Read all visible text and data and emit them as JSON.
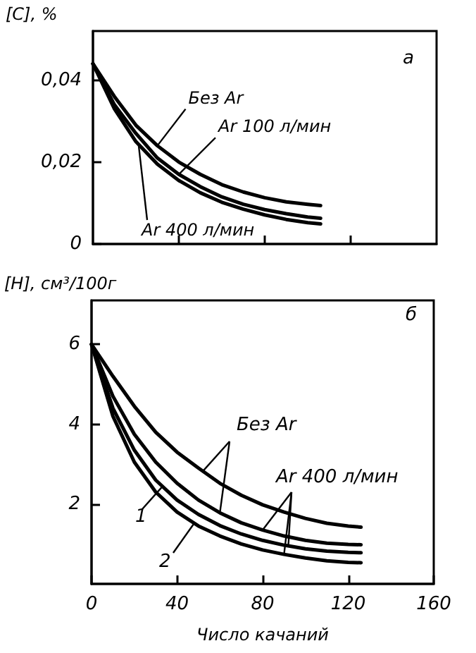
{
  "chart_data": [
    {
      "type": "line",
      "ylabel": "[C], %",
      "xlim": [
        0,
        160
      ],
      "xticks": [
        {
          "value": 40,
          "label": null
        },
        {
          "value": 80,
          "label": null
        },
        {
          "value": 120,
          "label": null
        }
      ],
      "ylim": [
        0,
        0.052
      ],
      "yticks": [
        0,
        {
          "value": 0.02,
          "label": "0,02"
        },
        {
          "value": 0.04,
          "label": "0,04"
        }
      ],
      "tick_labels": "y",
      "grid": false,
      "marker": "none",
      "line_style": "solid",
      "annotations": [
        "а"
      ],
      "x": [
        0,
        10,
        20,
        30,
        40,
        50,
        60,
        70,
        80,
        90,
        100,
        106
      ],
      "series": [
        {
          "name": "Без Ar",
          "color": "#000000",
          "values": [
            0.044,
            0.036,
            0.029,
            0.024,
            0.02,
            0.017,
            0.0145,
            0.0127,
            0.0113,
            0.0103,
            0.0097,
            0.0094
          ]
        },
        {
          "name": "Ar 100 л/мин",
          "color": "#000000",
          "values": [
            0.044,
            0.034,
            0.027,
            0.021,
            0.017,
            0.014,
            0.0115,
            0.0097,
            0.0084,
            0.0074,
            0.0066,
            0.0063
          ]
        },
        {
          "name": "Ar 400 л/мин",
          "color": "#000000",
          "values": [
            0.044,
            0.033,
            0.025,
            0.0195,
            0.0155,
            0.0125,
            0.0102,
            0.0085,
            0.0071,
            0.006,
            0.0052,
            0.0049
          ]
        }
      ]
    },
    {
      "type": "line",
      "ylabel": "[H], см³/100г",
      "xlabel": "Число качаний",
      "xlim": [
        0,
        160
      ],
      "xticks": [
        0,
        40,
        80,
        120,
        160
      ],
      "ylim": [
        0,
        7.1
      ],
      "yticks": [
        2,
        4,
        6
      ],
      "grid": false,
      "marker": "none",
      "line_style": "solid",
      "annotations": [
        "б",
        {
          "text": "Без Ar",
          "x": 52,
          "y": 2.82
        },
        {
          "text": "Ar 400 л/мин",
          "x": 80,
          "y": 1.35
        },
        {
          "text": "1",
          "x": 33,
          "y": 2.43
        },
        {
          "text": "2",
          "x": 48,
          "y": 1.52
        }
      ],
      "x": [
        0,
        10,
        20,
        30,
        40,
        50,
        60,
        70,
        80,
        90,
        100,
        110,
        120,
        126
      ],
      "series": [
        {
          "color": "#000000",
          "values": [
            6.0,
            5.2,
            4.45,
            3.8,
            3.3,
            2.9,
            2.52,
            2.22,
            1.98,
            1.8,
            1.64,
            1.52,
            1.45,
            1.42
          ]
        },
        {
          "color": "#000000",
          "values": [
            6.0,
            4.7,
            3.75,
            3.05,
            2.52,
            2.1,
            1.78,
            1.53,
            1.35,
            1.2,
            1.09,
            1.02,
            0.99,
            0.98
          ]
        },
        {
          "color": "#000000",
          "values": [
            6.0,
            4.4,
            3.35,
            2.6,
            2.1,
            1.74,
            1.46,
            1.25,
            1.09,
            0.97,
            0.88,
            0.82,
            0.79,
            0.78
          ]
        },
        {
          "color": "#000000",
          "values": [
            6.0,
            4.2,
            3.05,
            2.3,
            1.8,
            1.45,
            1.2,
            1.0,
            0.85,
            0.74,
            0.65,
            0.58,
            0.54,
            0.53
          ]
        }
      ]
    }
  ]
}
